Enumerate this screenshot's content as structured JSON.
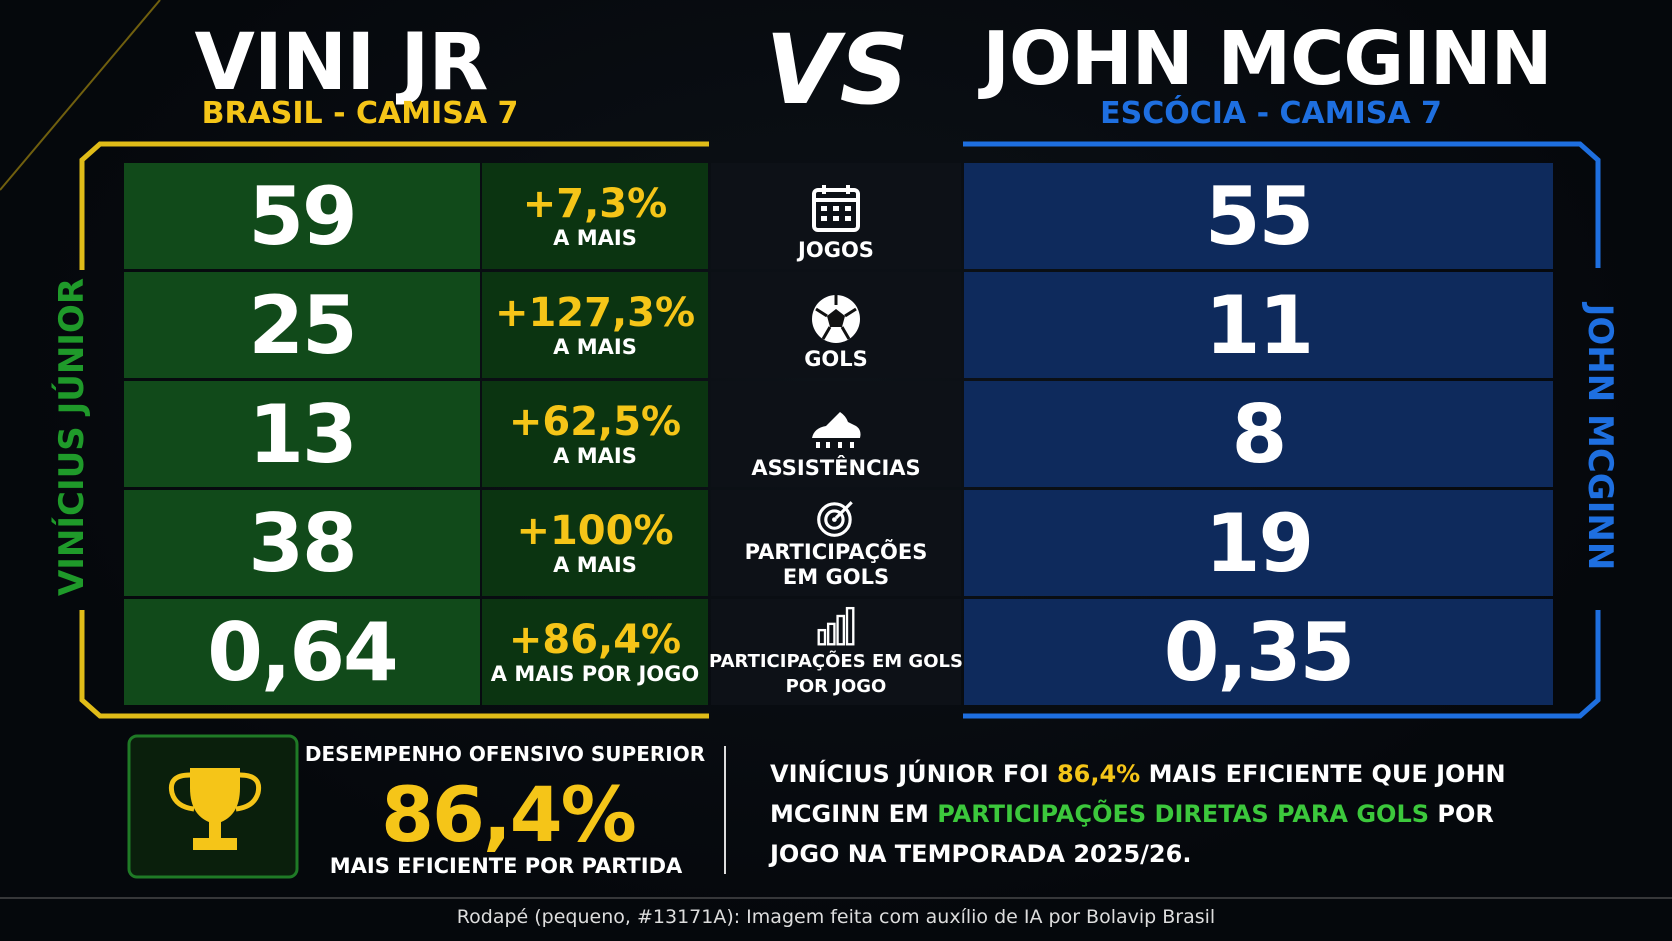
{
  "header": {
    "left_name": "VINI JR",
    "left_sub": "BRASIL - CAMISA 7",
    "vs": "VS",
    "right_name": "JOHN MCGINN",
    "right_sub": "ESCÓCIA - CAMISA 7"
  },
  "side_labels": {
    "left": "VINÍCIUS JÚNIOR",
    "right": "JOHN MCGINN"
  },
  "rows": [
    {
      "left": "59",
      "pct": "+7,3%",
      "pct_sub": "A MAIS",
      "label": [
        "JOGOS"
      ],
      "right": "55"
    },
    {
      "left": "25",
      "pct": "+127,3%",
      "pct_sub": "A MAIS",
      "label": [
        "GOLS"
      ],
      "right": "11"
    },
    {
      "left": "13",
      "pct": "+62,5%",
      "pct_sub": "A MAIS",
      "label": [
        "ASSISTÊNCIAS"
      ],
      "right": "8"
    },
    {
      "left": "38",
      "pct": "+100%",
      "pct_sub": "A MAIS",
      "label": [
        "PARTICIPAÇÕES",
        "EM GOLS"
      ],
      "right": "19"
    },
    {
      "left": "0,64",
      "pct": "+86,4%",
      "pct_sub": "A MAIS POR JOGO",
      "label": [
        "PARTICIPAÇÕES EM GOLS",
        "POR JOGO"
      ],
      "right": "0,35"
    }
  ],
  "summary": {
    "top": "DESEMPENHO OFENSIVO SUPERIOR",
    "big": "86,4%",
    "bottom": "MAIS EFICIENTE POR PARTIDA"
  },
  "sentence": [
    "VINÍCIUS JÚNIOR FOI ",
    "86,4%",
    " MAIS EFICIENTE QUE JOHN MCGINN EM ",
    "PARTICIPAÇÕES DIRETAS PARA GOLS",
    " POR JOGO NA TEMPORADA 2025/26."
  ],
  "footer": "Rodapé (pequeno, #13171A): Imagem feita com auxílio de IA por Bolavip Brasil"
}
